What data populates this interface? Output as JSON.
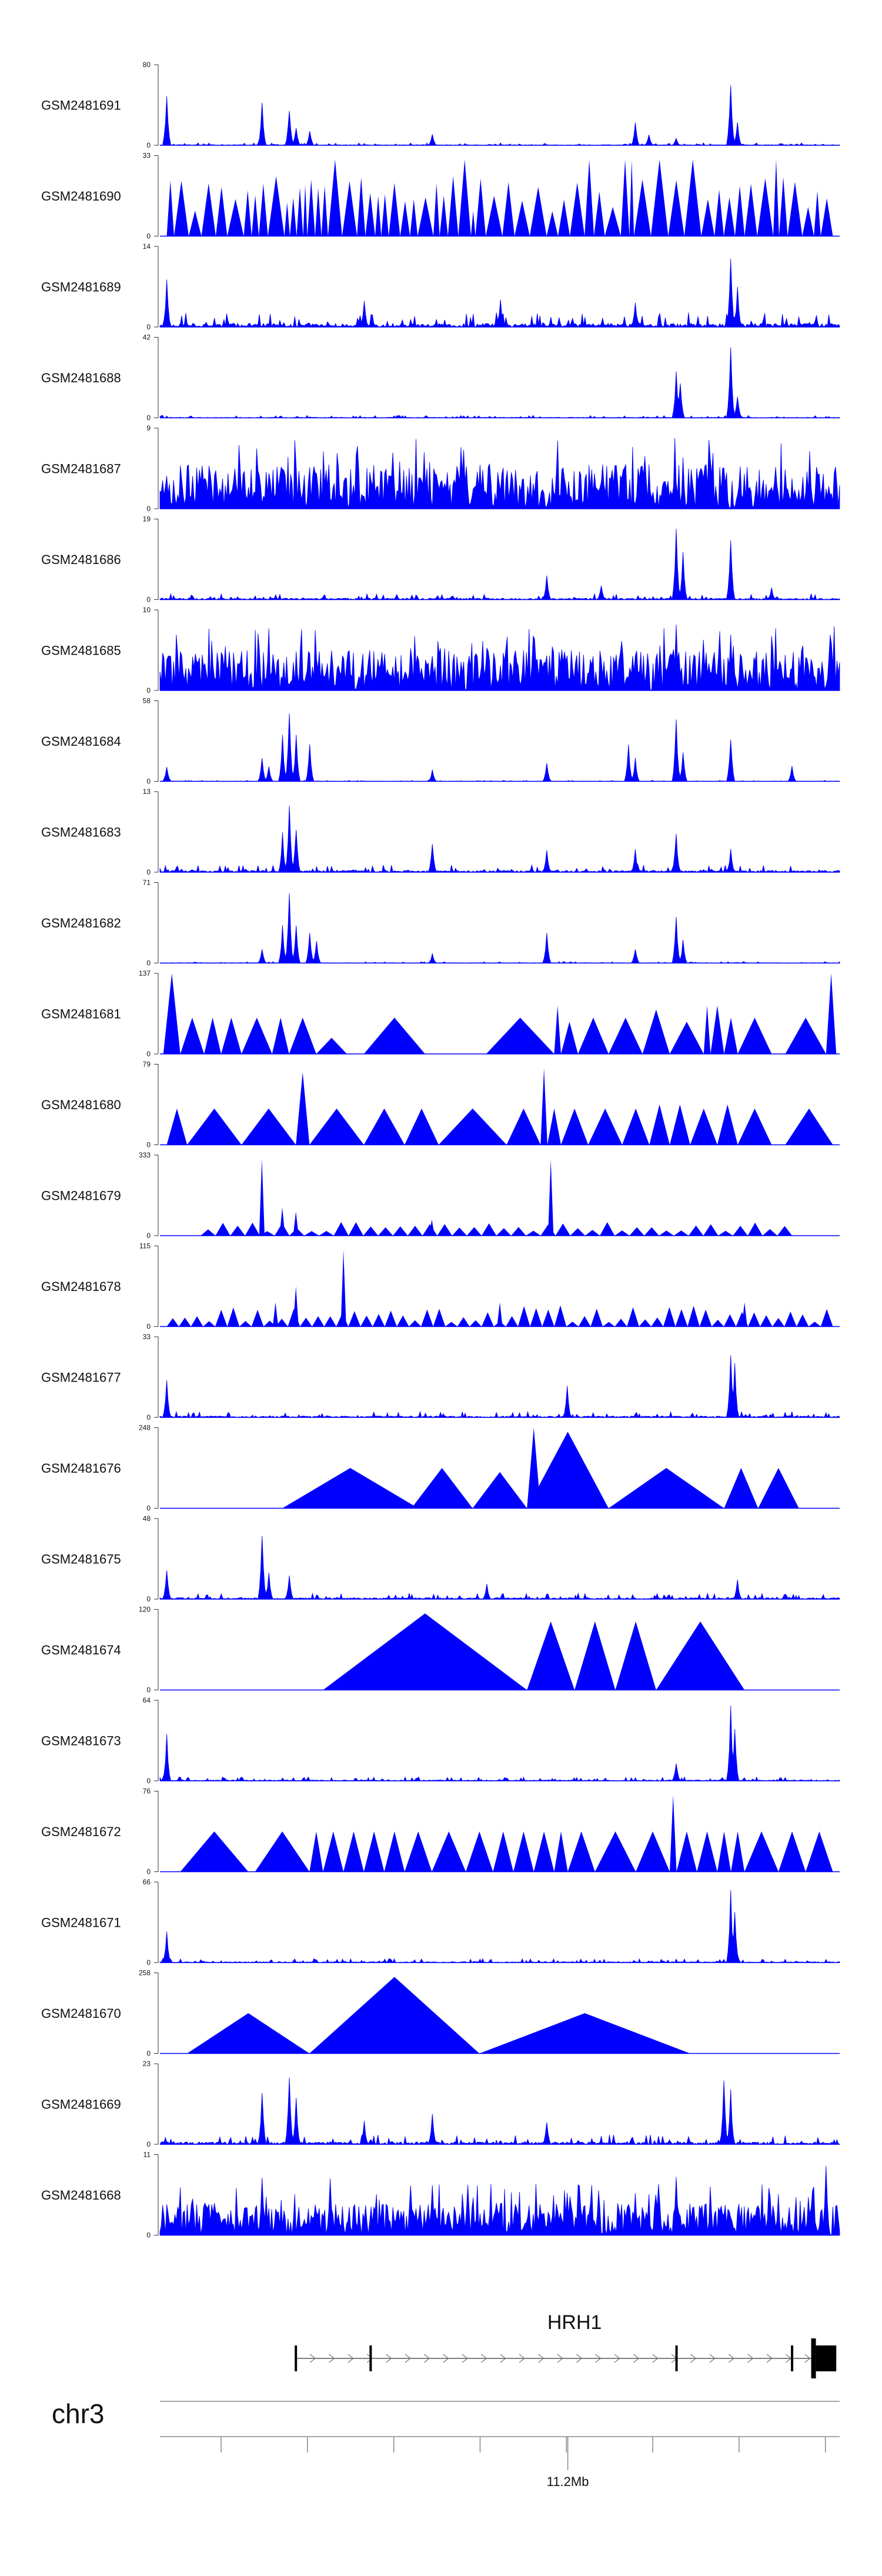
{
  "chart_data": {
    "type": "area",
    "title": "",
    "xlabel": "",
    "ylabel": "",
    "chromosome": "chr3",
    "gene": "HRH1",
    "x_tick_labels": [
      "11.2Mb"
    ],
    "grid": false,
    "color": "#0000ff",
    "tracks": [
      {
        "name": "GSM2481691",
        "ymax": "80",
        "style": "spiky",
        "peaks": [
          [
            0.01,
            0.7
          ],
          [
            0.15,
            0.55
          ],
          [
            0.19,
            0.5
          ],
          [
            0.2,
            0.25
          ],
          [
            0.22,
            0.2
          ],
          [
            0.4,
            0.15
          ],
          [
            0.7,
            0.3
          ],
          [
            0.72,
            0.15
          ],
          [
            0.76,
            0.1
          ],
          [
            0.84,
            0.85
          ],
          [
            0.85,
            0.3
          ]
        ],
        "noise": 0.05
      },
      {
        "name": "GSM2481690",
        "ymax": "33",
        "style": "tri",
        "count": 85,
        "maxh": 0.95,
        "seed": 3
      },
      {
        "name": "GSM2481689",
        "ymax": "14",
        "style": "spiky",
        "peaks": [
          [
            0.01,
            0.6
          ],
          [
            0.84,
            0.9
          ],
          [
            0.85,
            0.5
          ],
          [
            0.5,
            0.35
          ],
          [
            0.3,
            0.35
          ],
          [
            0.7,
            0.35
          ]
        ],
        "noise": 0.3
      },
      {
        "name": "GSM2481688",
        "ymax": "42",
        "style": "spiky",
        "peaks": [
          [
            0.76,
            0.6
          ],
          [
            0.765,
            0.5
          ],
          [
            0.84,
            0.95
          ],
          [
            0.85,
            0.3
          ]
        ],
        "noise": 0.05
      },
      {
        "name": "GSM2481687",
        "ymax": "9",
        "style": "dense",
        "noise": 0.55
      },
      {
        "name": "GSM2481686",
        "ymax": "19",
        "style": "spiky",
        "peaks": [
          [
            0.76,
            0.95
          ],
          [
            0.77,
            0.6
          ],
          [
            0.84,
            0.8
          ],
          [
            0.57,
            0.3
          ],
          [
            0.9,
            0.15
          ],
          [
            0.65,
            0.2
          ]
        ],
        "noise": 0.12
      },
      {
        "name": "GSM2481685",
        "ymax": "10",
        "style": "dense",
        "noise": 0.5,
        "peaks": [
          [
            0.76,
            0.9
          ],
          [
            0.8,
            0.7
          ],
          [
            0.84,
            0.7
          ],
          [
            0.55,
            0.75
          ],
          [
            0.7,
            0.5
          ]
        ]
      },
      {
        "name": "GSM2481684",
        "ymax": "58",
        "style": "spiky",
        "peaks": [
          [
            0.01,
            0.2
          ],
          [
            0.15,
            0.3
          ],
          [
            0.16,
            0.2
          ],
          [
            0.18,
            0.6
          ],
          [
            0.19,
            0.95
          ],
          [
            0.2,
            0.6
          ],
          [
            0.22,
            0.5
          ],
          [
            0.4,
            0.15
          ],
          [
            0.57,
            0.25
          ],
          [
            0.69,
            0.5
          ],
          [
            0.7,
            0.3
          ],
          [
            0.76,
            0.85
          ],
          [
            0.77,
            0.4
          ],
          [
            0.84,
            0.6
          ],
          [
            0.93,
            0.2
          ]
        ],
        "noise": 0.02
      },
      {
        "name": "GSM2481683",
        "ymax": "13",
        "style": "spiky",
        "peaks": [
          [
            0.19,
            0.95
          ],
          [
            0.2,
            0.6
          ],
          [
            0.18,
            0.5
          ],
          [
            0.4,
            0.4
          ],
          [
            0.57,
            0.3
          ],
          [
            0.76,
            0.55
          ],
          [
            0.84,
            0.3
          ],
          [
            0.7,
            0.3
          ]
        ],
        "noise": 0.15
      },
      {
        "name": "GSM2481682",
        "ymax": "71",
        "style": "spiky",
        "peaks": [
          [
            0.15,
            0.2
          ],
          [
            0.18,
            0.5
          ],
          [
            0.19,
            0.95
          ],
          [
            0.2,
            0.5
          ],
          [
            0.22,
            0.4
          ],
          [
            0.23,
            0.3
          ],
          [
            0.4,
            0.12
          ],
          [
            0.57,
            0.4
          ],
          [
            0.7,
            0.2
          ],
          [
            0.76,
            0.65
          ],
          [
            0.77,
            0.3
          ]
        ],
        "noise": 0.03
      },
      {
        "name": "GSM2481681",
        "ymax": "137",
        "style": "tri_list",
        "tris": [
          [
            0.005,
            0.03,
            1.0
          ],
          [
            0.03,
            0.065,
            0.45
          ],
          [
            0.065,
            0.09,
            0.45
          ],
          [
            0.09,
            0.12,
            0.45
          ],
          [
            0.12,
            0.165,
            0.45
          ],
          [
            0.165,
            0.19,
            0.45
          ],
          [
            0.19,
            0.23,
            0.45
          ],
          [
            0.23,
            0.275,
            0.2
          ],
          [
            0.3,
            0.39,
            0.45
          ],
          [
            0.48,
            0.58,
            0.45
          ],
          [
            0.58,
            0.59,
            0.6
          ],
          [
            0.59,
            0.615,
            0.4
          ],
          [
            0.615,
            0.66,
            0.45
          ],
          [
            0.66,
            0.71,
            0.45
          ],
          [
            0.71,
            0.75,
            0.55
          ],
          [
            0.75,
            0.8,
            0.4
          ],
          [
            0.8,
            0.81,
            0.6
          ],
          [
            0.81,
            0.83,
            0.6
          ],
          [
            0.83,
            0.85,
            0.45
          ],
          [
            0.85,
            0.9,
            0.45
          ],
          [
            0.92,
            0.98,
            0.45
          ],
          [
            0.98,
            0.995,
            1.0
          ]
        ]
      },
      {
        "name": "GSM2481680",
        "ymax": "79",
        "style": "tri_list",
        "tris": [
          [
            0.01,
            0.04,
            0.45
          ],
          [
            0.04,
            0.12,
            0.45
          ],
          [
            0.12,
            0.2,
            0.45
          ],
          [
            0.2,
            0.22,
            0.9
          ],
          [
            0.22,
            0.3,
            0.45
          ],
          [
            0.3,
            0.36,
            0.45
          ],
          [
            0.36,
            0.41,
            0.45
          ],
          [
            0.41,
            0.51,
            0.45
          ],
          [
            0.51,
            0.56,
            0.45
          ],
          [
            0.56,
            0.57,
            0.95
          ],
          [
            0.57,
            0.59,
            0.45
          ],
          [
            0.59,
            0.63,
            0.45
          ],
          [
            0.63,
            0.68,
            0.45
          ],
          [
            0.68,
            0.72,
            0.45
          ],
          [
            0.72,
            0.75,
            0.5
          ],
          [
            0.75,
            0.78,
            0.5
          ],
          [
            0.78,
            0.82,
            0.45
          ],
          [
            0.82,
            0.85,
            0.5
          ],
          [
            0.85,
            0.9,
            0.45
          ],
          [
            0.92,
            0.99,
            0.45
          ]
        ]
      },
      {
        "name": "GSM2481679",
        "ymax": "333",
        "style": "tri_small",
        "count": 40,
        "from": 0.06,
        "to": 0.93,
        "maxh": 0.12,
        "peaks": [
          [
            0.15,
            0.95
          ],
          [
            0.575,
            0.95
          ],
          [
            0.2,
            0.3
          ],
          [
            0.18,
            0.35
          ],
          [
            0.4,
            0.2
          ]
        ],
        "seed": 7
      },
      {
        "name": "GSM2481678",
        "ymax": "115",
        "style": "tri_small",
        "count": 55,
        "from": 0.01,
        "to": 0.99,
        "maxh": 0.22,
        "peaks": [
          [
            0.27,
            0.95
          ],
          [
            0.2,
            0.5
          ],
          [
            0.17,
            0.3
          ],
          [
            0.5,
            0.3
          ],
          [
            0.86,
            0.3
          ]
        ],
        "seed": 11
      },
      {
        "name": "GSM2481677",
        "ymax": "33",
        "style": "spiky",
        "peaks": [
          [
            0.84,
            0.85
          ],
          [
            0.845,
            0.7
          ],
          [
            0.6,
            0.4
          ],
          [
            0.01,
            0.5
          ]
        ],
        "noise": 0.12
      },
      {
        "name": "GSM2481676",
        "ymax": "248",
        "style": "tri_list",
        "tris": [
          [
            0.18,
            0.38,
            0.5
          ],
          [
            0.37,
            0.46,
            0.5
          ],
          [
            0.46,
            0.54,
            0.45
          ],
          [
            0.54,
            0.56,
            1.0
          ],
          [
            0.54,
            0.66,
            0.95
          ],
          [
            0.66,
            0.83,
            0.5
          ],
          [
            0.83,
            0.88,
            0.5
          ],
          [
            0.88,
            0.94,
            0.5
          ]
        ]
      },
      {
        "name": "GSM2481675",
        "ymax": "48",
        "style": "spiky",
        "peaks": [
          [
            0.15,
            0.9
          ],
          [
            0.16,
            0.35
          ],
          [
            0.19,
            0.3
          ],
          [
            0.01,
            0.4
          ],
          [
            0.48,
            0.2
          ],
          [
            0.85,
            0.25
          ]
        ],
        "noise": 0.12
      },
      {
        "name": "GSM2481674",
        "ymax": "120",
        "style": "tri_list",
        "tris": [
          [
            0.24,
            0.54,
            0.95
          ],
          [
            0.54,
            0.61,
            0.85
          ],
          [
            0.61,
            0.67,
            0.85
          ],
          [
            0.67,
            0.73,
            0.85
          ],
          [
            0.73,
            0.86,
            0.85
          ]
        ]
      },
      {
        "name": "GSM2481673",
        "ymax": "64",
        "style": "spiky",
        "peaks": [
          [
            0.84,
            0.95
          ],
          [
            0.845,
            0.7
          ],
          [
            0.01,
            0.6
          ],
          [
            0.76,
            0.25
          ]
        ],
        "noise": 0.08
      },
      {
        "name": "GSM2481672",
        "ymax": "76",
        "style": "tri_list",
        "tris": [
          [
            0.03,
            0.13,
            0.5
          ],
          [
            0.14,
            0.22,
            0.5
          ],
          [
            0.22,
            0.24,
            0.5
          ],
          [
            0.24,
            0.27,
            0.5
          ],
          [
            0.27,
            0.3,
            0.5
          ],
          [
            0.3,
            0.33,
            0.5
          ],
          [
            0.33,
            0.36,
            0.5
          ],
          [
            0.36,
            0.4,
            0.5
          ],
          [
            0.4,
            0.45,
            0.5
          ],
          [
            0.45,
            0.49,
            0.5
          ],
          [
            0.49,
            0.52,
            0.5
          ],
          [
            0.52,
            0.55,
            0.5
          ],
          [
            0.55,
            0.58,
            0.5
          ],
          [
            0.58,
            0.6,
            0.5
          ],
          [
            0.6,
            0.64,
            0.5
          ],
          [
            0.64,
            0.7,
            0.5
          ],
          [
            0.7,
            0.75,
            0.5
          ],
          [
            0.75,
            0.76,
            0.95
          ],
          [
            0.76,
            0.79,
            0.5
          ],
          [
            0.79,
            0.82,
            0.5
          ],
          [
            0.82,
            0.84,
            0.5
          ],
          [
            0.84,
            0.86,
            0.5
          ],
          [
            0.86,
            0.91,
            0.5
          ],
          [
            0.91,
            0.95,
            0.5
          ],
          [
            0.95,
            0.99,
            0.5
          ]
        ]
      },
      {
        "name": "GSM2481671",
        "ymax": "66",
        "style": "spiky",
        "peaks": [
          [
            0.84,
            0.95
          ],
          [
            0.845,
            0.7
          ],
          [
            0.01,
            0.4
          ]
        ],
        "noise": 0.08
      },
      {
        "name": "GSM2481670",
        "ymax": "258",
        "style": "tri_list",
        "tris": [
          [
            0.04,
            0.22,
            0.5
          ],
          [
            0.22,
            0.47,
            0.95
          ],
          [
            0.47,
            0.78,
            0.5
          ]
        ]
      },
      {
        "name": "GSM2481669",
        "ymax": "23",
        "style": "spiky",
        "peaks": [
          [
            0.15,
            0.7
          ],
          [
            0.19,
            0.95
          ],
          [
            0.2,
            0.6
          ],
          [
            0.4,
            0.4
          ],
          [
            0.83,
            0.85
          ],
          [
            0.84,
            0.7
          ],
          [
            0.57,
            0.3
          ],
          [
            0.3,
            0.3
          ]
        ],
        "noise": 0.2
      },
      {
        "name": "GSM2481668",
        "ymax": "11",
        "style": "dense",
        "noise": 0.4,
        "peaks": [
          [
            0.15,
            0.8
          ],
          [
            0.25,
            0.75
          ],
          [
            0.4,
            0.7
          ],
          [
            0.76,
            0.85
          ],
          [
            0.98,
            0.9
          ],
          [
            0.6,
            0.6
          ],
          [
            0.7,
            0.55
          ]
        ]
      }
    ],
    "gene_model": {
      "strand": "+",
      "exons_x": [
        0.2,
        0.31,
        0.76,
        0.93,
        0.965
      ],
      "start": 0.2,
      "end": 0.995
    }
  }
}
